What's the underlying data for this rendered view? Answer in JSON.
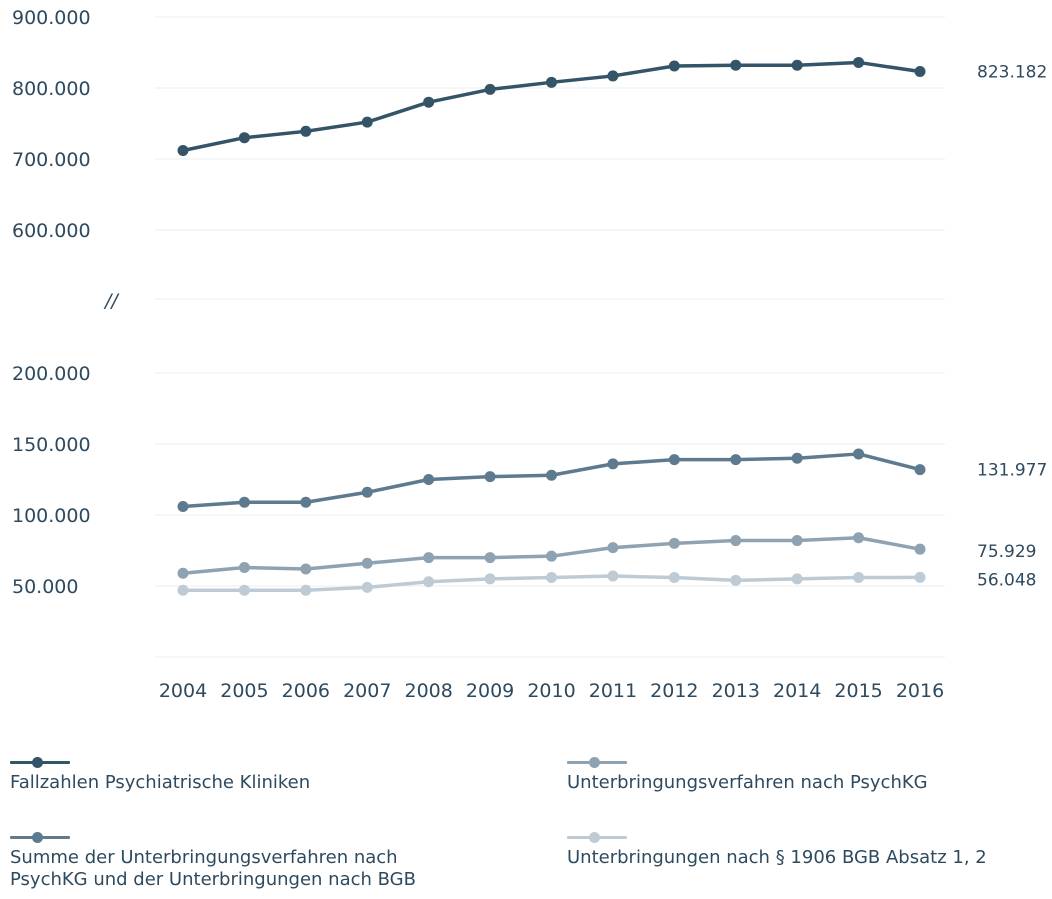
{
  "chart_data": {
    "type": "line",
    "title": "",
    "xlabel": "",
    "ylabel": "",
    "axis_break_marker": "//",
    "y_ticks_upper": [
      "900.000",
      "800.000",
      "700.000",
      "600.000"
    ],
    "y_ticks_lower": [
      "200.000",
      "150.000",
      "100.000",
      "50.000"
    ],
    "y_range_upper": [
      600000,
      900000
    ],
    "y_range_lower": [
      0,
      200000
    ],
    "grid": "horizontal",
    "legend_position": "bottom",
    "x": [
      "2004",
      "2005",
      "2006",
      "2007",
      "2008",
      "2009",
      "2010",
      "2011",
      "2012",
      "2013",
      "2014",
      "2015",
      "2016"
    ],
    "series": [
      {
        "name": "Fallzahlen Psychiatrische Kliniken",
        "color": "#345468",
        "segment": "upper",
        "values": [
          712000,
          730000,
          739000,
          752000,
          780000,
          798000,
          808000,
          817000,
          831000,
          832000,
          832000,
          836000,
          823182
        ],
        "end_label": "823.182"
      },
      {
        "name": "Summe der Unterbringungsverfahren nach PsychKG und der Unterbringungen nach BGB",
        "color": "#5e7a8e",
        "segment": "lower",
        "values": [
          106000,
          109000,
          109000,
          116000,
          125000,
          127000,
          128000,
          136000,
          139000,
          139000,
          140000,
          143000,
          131977
        ],
        "end_label": "131.977"
      },
      {
        "name": "Unterbringungsverfahren nach PsychKG",
        "color": "#8ea2b2",
        "segment": "lower",
        "values": [
          59000,
          63000,
          62000,
          66000,
          70000,
          70000,
          71000,
          77000,
          80000,
          82000,
          82000,
          84000,
          75929
        ],
        "end_label": "75.929"
      },
      {
        "name": "Unterbringungen nach § 1906 BGB Absatz 1, 2",
        "color": "#bfcbd4",
        "segment": "lower",
        "values": [
          47000,
          47000,
          47000,
          49000,
          53000,
          55000,
          56000,
          57000,
          56000,
          54000,
          55000,
          56000,
          56048
        ],
        "end_label": "56.048"
      }
    ]
  }
}
